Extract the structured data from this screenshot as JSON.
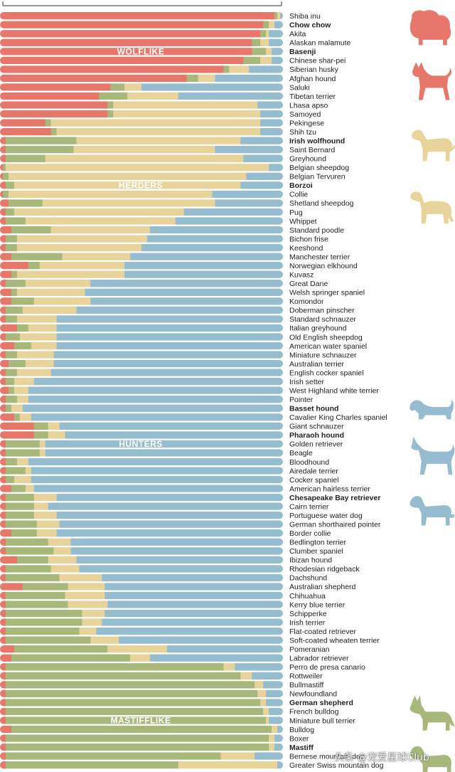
{
  "chart_data": {
    "type": "bar",
    "stacked": true,
    "orientation": "horizontal",
    "scale_max": 1,
    "series": [
      {
        "key": "wolf",
        "color": "#e8776b"
      },
      {
        "key": "mast",
        "color": "#a8b87a"
      },
      {
        "key": "herd",
        "color": "#e8d49a"
      },
      {
        "key": "hunt",
        "color": "#96bcd0"
      }
    ],
    "cluster_labels": [
      {
        "text": "WOLFLIKE",
        "row": 4
      },
      {
        "text": "HERDERS",
        "row": 19
      },
      {
        "text": "HUNTERS",
        "row": 48
      },
      {
        "text": "MASTIFFLIKE",
        "row": 79
      }
    ],
    "breeds": [
      {
        "name": "Shiba inu",
        "v": [
          0.97,
          0.01,
          0.01,
          0.01
        ]
      },
      {
        "name": "Chow chow",
        "v": [
          0.93,
          0.02,
          0.02,
          0.03
        ],
        "highlight": "#d4473c"
      },
      {
        "name": "Akita",
        "v": [
          0.92,
          0.02,
          0.01,
          0.05
        ]
      },
      {
        "name": "Alaskan malamute",
        "v": [
          0.89,
          0.03,
          0.03,
          0.05
        ]
      },
      {
        "name": "Basenji",
        "v": [
          0.89,
          0.05,
          0.02,
          0.04
        ],
        "highlight": "#d4473c"
      },
      {
        "name": "Chinese shar-pei",
        "v": [
          0.86,
          0.06,
          0.04,
          0.04
        ]
      },
      {
        "name": "Siberian husky",
        "v": [
          0.79,
          0.02,
          0.07,
          0.12
        ]
      },
      {
        "name": "Afghan hound",
        "v": [
          0.66,
          0.04,
          0.06,
          0.24
        ]
      },
      {
        "name": "Saluki",
        "v": [
          0.39,
          0.05,
          0.06,
          0.5
        ]
      },
      {
        "name": "Tibetan terrier",
        "v": [
          0.35,
          0.1,
          0.18,
          0.37
        ]
      },
      {
        "name": "Lhasa apso",
        "v": [
          0.38,
          0.02,
          0.51,
          0.09
        ]
      },
      {
        "name": "Samoyed",
        "v": [
          0.38,
          0.02,
          0.52,
          0.08
        ]
      },
      {
        "name": "Pekingese",
        "v": [
          0.16,
          0.02,
          0.74,
          0.08
        ]
      },
      {
        "name": "Shih tzu",
        "v": [
          0.18,
          0.02,
          0.72,
          0.08
        ]
      },
      {
        "name": "Irish wolfhound",
        "v": [
          0.02,
          0.25,
          0.58,
          0.15
        ],
        "highlight": "#a08a3c"
      },
      {
        "name": "Saint Bernard",
        "v": [
          0.02,
          0.24,
          0.5,
          0.24
        ]
      },
      {
        "name": "Greyhound",
        "v": [
          0.02,
          0.14,
          0.7,
          0.14
        ]
      },
      {
        "name": "Belgian sheepdog",
        "v": [
          0.01,
          0.01,
          0.93,
          0.05
        ]
      },
      {
        "name": "Belgian Tervuren",
        "v": [
          0.01,
          0.02,
          0.84,
          0.13
        ]
      },
      {
        "name": "Borzoi",
        "v": [
          0.02,
          0.03,
          0.8,
          0.15
        ],
        "highlight": "#a08a3c"
      },
      {
        "name": "Collie",
        "v": [
          0.01,
          0.02,
          0.72,
          0.25
        ]
      },
      {
        "name": "Shetland sheepdog",
        "v": [
          0.03,
          0.12,
          0.61,
          0.24
        ]
      },
      {
        "name": "Pug",
        "v": [
          0.02,
          0.03,
          0.6,
          0.35
        ]
      },
      {
        "name": "Whippet",
        "v": [
          0.02,
          0.07,
          0.53,
          0.38
        ]
      },
      {
        "name": "Standard poodle",
        "v": [
          0.04,
          0.14,
          0.35,
          0.47
        ]
      },
      {
        "name": "Bichon frise",
        "v": [
          0.02,
          0.04,
          0.46,
          0.48
        ]
      },
      {
        "name": "Keeshond",
        "v": [
          0.02,
          0.04,
          0.44,
          0.5
        ]
      },
      {
        "name": "Manchester terrier",
        "v": [
          0.04,
          0.18,
          0.24,
          0.54
        ]
      },
      {
        "name": "Norwegian elkhound",
        "v": [
          0.1,
          0.04,
          0.3,
          0.56
        ]
      },
      {
        "name": "Kuvasz",
        "v": [
          0.04,
          0.02,
          0.38,
          0.56
        ]
      },
      {
        "name": "Great Dane",
        "v": [
          0.02,
          0.07,
          0.23,
          0.68
        ]
      },
      {
        "name": "Welsh springer spaniel",
        "v": [
          0.04,
          0.02,
          0.24,
          0.7
        ]
      },
      {
        "name": "Komondor",
        "v": [
          0.04,
          0.08,
          0.2,
          0.68
        ]
      },
      {
        "name": "Doberman pinscher",
        "v": [
          0.02,
          0.06,
          0.19,
          0.73
        ]
      },
      {
        "name": "Standard schnauzer",
        "v": [
          0.02,
          0.04,
          0.14,
          0.8
        ]
      },
      {
        "name": "Italian greyhound",
        "v": [
          0.06,
          0.04,
          0.1,
          0.8
        ]
      },
      {
        "name": "Old English sheepdog",
        "v": [
          0.02,
          0.05,
          0.13,
          0.8
        ]
      },
      {
        "name": "American water spaniel",
        "v": [
          0.05,
          0.06,
          0.09,
          0.8
        ]
      },
      {
        "name": "Miniature schnauzer",
        "v": [
          0.02,
          0.04,
          0.13,
          0.81
        ]
      },
      {
        "name": "Australian terrier",
        "v": [
          0.03,
          0.06,
          0.1,
          0.81
        ]
      },
      {
        "name": "English cocker spaniel",
        "v": [
          0.02,
          0.04,
          0.12,
          0.82
        ]
      },
      {
        "name": "Irish setter",
        "v": [
          0.02,
          0.03,
          0.07,
          0.88
        ]
      },
      {
        "name": "West Highland white terrier",
        "v": [
          0.03,
          0.02,
          0.05,
          0.9
        ]
      },
      {
        "name": "Pointer",
        "v": [
          0.02,
          0.04,
          0.04,
          0.9
        ]
      },
      {
        "name": "Basset hound",
        "v": [
          0.02,
          0.02,
          0.04,
          0.92
        ],
        "highlight": "#2c6e8c"
      },
      {
        "name": "Cavalier King Charles spaniel",
        "v": [
          0.05,
          0.02,
          0.04,
          0.89
        ]
      },
      {
        "name": "Giant schnauzer",
        "v": [
          0.12,
          0.05,
          0.04,
          0.79
        ]
      },
      {
        "name": "Pharaoh hound",
        "v": [
          0.12,
          0.05,
          0.06,
          0.77
        ],
        "highlight": "#2c6e8c"
      },
      {
        "name": "Golden retriever",
        "v": [
          0.02,
          0.12,
          0.02,
          0.84
        ]
      },
      {
        "name": "Beagle",
        "v": [
          0.02,
          0.12,
          0.02,
          0.84
        ]
      },
      {
        "name": "Bloodhound",
        "v": [
          0.02,
          0.04,
          0.04,
          0.9
        ]
      },
      {
        "name": "Airedale terrier",
        "v": [
          0.02,
          0.07,
          0.02,
          0.89
        ]
      },
      {
        "name": "Cocker spaniel",
        "v": [
          0.02,
          0.03,
          0.06,
          0.89
        ]
      },
      {
        "name": "American hairless terrier",
        "v": [
          0.04,
          0.05,
          0.03,
          0.88
        ]
      },
      {
        "name": "Chesapeake Bay retriever",
        "v": [
          0.02,
          0.1,
          0.08,
          0.8
        ],
        "highlight": "#2c6e8c"
      },
      {
        "name": "Cairn terrier",
        "v": [
          0.02,
          0.1,
          0.05,
          0.83
        ]
      },
      {
        "name": "Portuguese water dog",
        "v": [
          0.02,
          0.1,
          0.08,
          0.8
        ]
      },
      {
        "name": "German shorthaired pointer",
        "v": [
          0.02,
          0.11,
          0.08,
          0.79
        ]
      },
      {
        "name": "Border collie",
        "v": [
          0.04,
          0.09,
          0.07,
          0.8
        ]
      },
      {
        "name": "Bedlington terrier",
        "v": [
          0.02,
          0.15,
          0.08,
          0.75
        ]
      },
      {
        "name": "Clumber spaniel",
        "v": [
          0.02,
          0.17,
          0.06,
          0.75
        ]
      },
      {
        "name": "Ibizan hound",
        "v": [
          0.06,
          0.11,
          0.1,
          0.73
        ]
      },
      {
        "name": "Rhodesian ridgeback",
        "v": [
          0.02,
          0.16,
          0.1,
          0.72
        ]
      },
      {
        "name": "Dachshund",
        "v": [
          0.02,
          0.19,
          0.15,
          0.64
        ]
      },
      {
        "name": "Australian shepherd",
        "v": [
          0.08,
          0.16,
          0.13,
          0.63
        ]
      },
      {
        "name": "Chihuahua",
        "v": [
          0.02,
          0.21,
          0.14,
          0.63
        ]
      },
      {
        "name": "Kerry blue terrier",
        "v": [
          0.02,
          0.22,
          0.14,
          0.62
        ]
      },
      {
        "name": "Schipperke",
        "v": [
          0.02,
          0.27,
          0.08,
          0.63
        ]
      },
      {
        "name": "Irish terrier",
        "v": [
          0.02,
          0.27,
          0.07,
          0.64
        ]
      },
      {
        "name": "Flat-coated retriever",
        "v": [
          0.02,
          0.26,
          0.06,
          0.66
        ]
      },
      {
        "name": "Soft-coated wheaten terrier",
        "v": [
          0.02,
          0.3,
          0.1,
          0.58
        ]
      },
      {
        "name": "Pomeranian",
        "v": [
          0.05,
          0.33,
          0.21,
          0.41
        ]
      },
      {
        "name": "Labrador retriever",
        "v": [
          0.04,
          0.42,
          0.07,
          0.47
        ]
      },
      {
        "name": "Perro de presa canario",
        "v": [
          0.02,
          0.77,
          0.04,
          0.17
        ]
      },
      {
        "name": "Rottweiler",
        "v": [
          0.02,
          0.83,
          0.04,
          0.11
        ]
      },
      {
        "name": "Bullmastiff",
        "v": [
          0.02,
          0.88,
          0.03,
          0.07
        ]
      },
      {
        "name": "Newfoundland",
        "v": [
          0.02,
          0.89,
          0.03,
          0.06
        ]
      },
      {
        "name": "German shepherd",
        "v": [
          0.02,
          0.9,
          0.02,
          0.06
        ],
        "highlight": "#6b7d3a"
      },
      {
        "name": "French bulldog",
        "v": [
          0.02,
          0.91,
          0.02,
          0.05
        ]
      },
      {
        "name": "Miniature bull terrier",
        "v": [
          0.02,
          0.92,
          0.01,
          0.05
        ]
      },
      {
        "name": "Bulldog",
        "v": [
          0.04,
          0.92,
          0.02,
          0.02
        ]
      },
      {
        "name": "Boxer",
        "v": [
          0.02,
          0.93,
          0.02,
          0.03
        ]
      },
      {
        "name": "Mastiff",
        "v": [
          0.02,
          0.93,
          0.02,
          0.03
        ],
        "highlight": "#6b7d3a"
      },
      {
        "name": "Bernese mountain dog",
        "v": [
          0.02,
          0.76,
          0.12,
          0.1
        ]
      },
      {
        "name": "Greater Swiss mountain dog",
        "v": [
          0.02,
          0.61,
          0.35,
          0.02
        ]
      }
    ],
    "silhouettes": [
      {
        "name": "chow-chow-silhouette",
        "color": "#e8776b",
        "row": 1
      },
      {
        "name": "basenji-silhouette",
        "color": "#e8776b",
        "row": 7
      },
      {
        "name": "irish-wolfhound-silhouette",
        "color": "#e8d49a",
        "row": 14
      },
      {
        "name": "borzoi-silhouette",
        "color": "#e8d49a",
        "row": 21
      },
      {
        "name": "basset-hound-silhouette",
        "color": "#96bcd0",
        "row": 44
      },
      {
        "name": "pharaoh-hound-silhouette",
        "color": "#96bcd0",
        "row": 49
      },
      {
        "name": "chesapeake-retriever-silhouette",
        "color": "#96bcd0",
        "row": 55
      },
      {
        "name": "german-shepherd-silhouette",
        "color": "#a8b87a",
        "row": 78
      },
      {
        "name": "mastiff-silhouette",
        "color": "#a8b87a",
        "row": 83
      }
    ]
  },
  "watermark": "头条 @宠爱星球Club"
}
